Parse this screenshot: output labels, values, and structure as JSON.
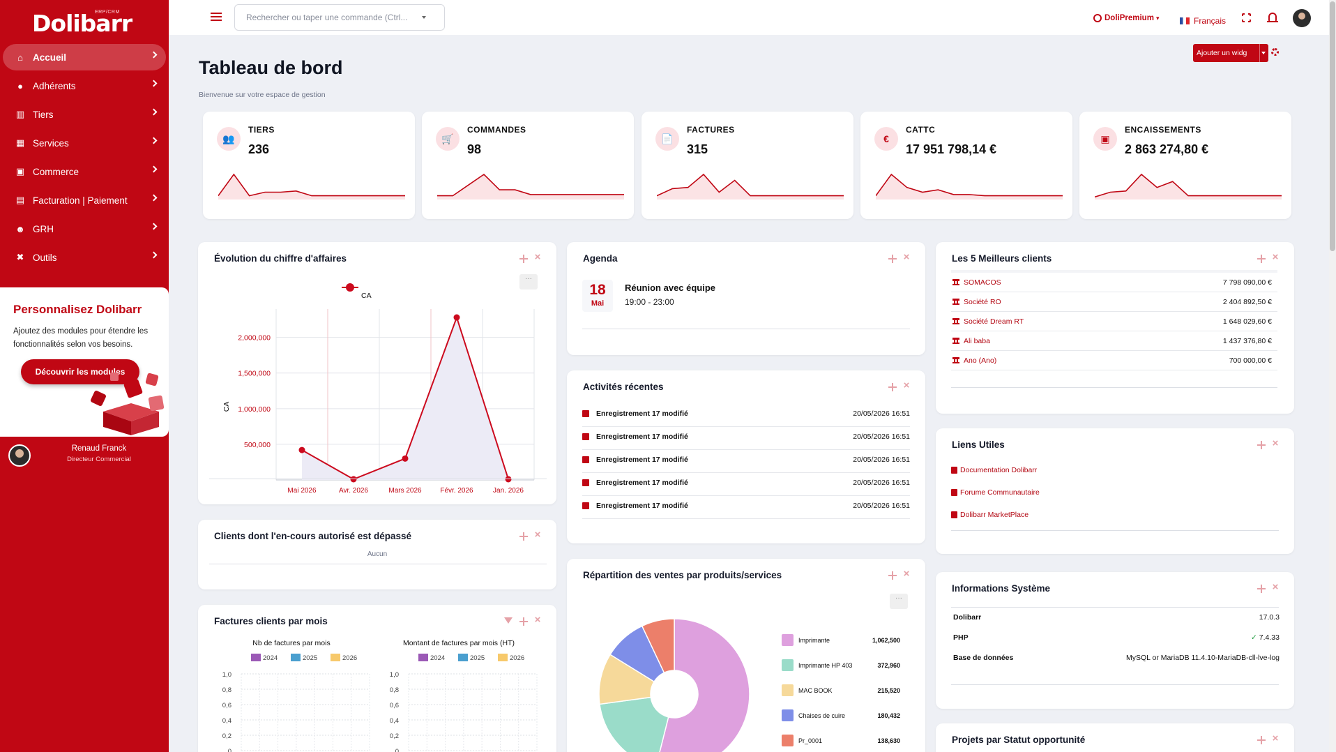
{
  "app": {
    "logo": "Dolibarr",
    "logo_sub": "ERP/CRM"
  },
  "colors": {
    "brand": "#c00714",
    "background": "#eef0f5",
    "card": "#ffffff"
  },
  "sidebar": {
    "items": [
      {
        "label": "Accueil",
        "icon": "home-icon",
        "active": true
      },
      {
        "label": "Adhérents",
        "icon": "user-icon",
        "active": false
      },
      {
        "label": "Tiers",
        "icon": "bank-icon",
        "active": false
      },
      {
        "label": "Services",
        "icon": "boxes-icon",
        "active": false
      },
      {
        "label": "Commerce",
        "icon": "briefcase-icon",
        "active": false
      },
      {
        "label": "Facturation | Paiement",
        "icon": "invoice-icon",
        "active": false
      },
      {
        "label": "GRH",
        "icon": "users-icon",
        "active": false
      },
      {
        "label": "Outils",
        "icon": "tools-icon",
        "active": false
      }
    ],
    "promo": {
      "title": "Personnalisez Dolibarr",
      "text": "Ajoutez des modules pour étendre les fonctionnalités selon vos besoins.",
      "button": "Découvrir les modules"
    },
    "user": {
      "name": "Renaud Franck",
      "role": "Directeur Commercial"
    }
  },
  "topbar": {
    "search_placeholder": "Rechercher ou taper une commande (Ctrl...",
    "premium": "DoliPremium",
    "language": "Français"
  },
  "header": {
    "title": "Tableau de bord",
    "subtitle": "Bienvenue sur votre espace de gestion",
    "add_widget": "Ajouter un widg"
  },
  "kpis": [
    {
      "label": "TIERS",
      "value": "236",
      "icon": "users-icon",
      "glyph": "👥",
      "spark": [
        0.1,
        1.0,
        0.1,
        0.25,
        0.25,
        0.3,
        0.1,
        0.1,
        0.1,
        0.1,
        0.1,
        0.1,
        0.1
      ]
    },
    {
      "label": "COMMANDES",
      "value": "98",
      "icon": "cart-icon",
      "glyph": "🛒",
      "spark": [
        0.1,
        0.1,
        0.55,
        1.0,
        0.35,
        0.35,
        0.15,
        0.15,
        0.15,
        0.15,
        0.15,
        0.15,
        0.15
      ]
    },
    {
      "label": "FACTURES",
      "value": "315",
      "icon": "invoice-icon",
      "glyph": "📄",
      "spark": [
        0.1,
        0.4,
        0.45,
        1.0,
        0.25,
        0.75,
        0.1,
        0.1,
        0.1,
        0.1,
        0.1,
        0.1,
        0.1
      ]
    },
    {
      "label": "CATTC",
      "value": "17 951 798,14 €",
      "icon": "euro-icon",
      "glyph": "€",
      "spark": [
        0.1,
        1.0,
        0.45,
        0.25,
        0.35,
        0.15,
        0.15,
        0.1,
        0.1,
        0.1,
        0.1,
        0.1,
        0.1
      ]
    },
    {
      "label": "ENCAISSEMENTS",
      "value": "2 863 274,80 €",
      "icon": "wallet-icon",
      "glyph": "▣",
      "spark": [
        0.05,
        0.25,
        0.3,
        1.0,
        0.45,
        0.7,
        0.1,
        0.1,
        0.1,
        0.1,
        0.1,
        0.1,
        0.1
      ]
    }
  ],
  "widgets": {
    "ca": {
      "title": "Évolution du chiffre d'affaires"
    },
    "agenda": {
      "title": "Agenda",
      "day": "18",
      "month": "Mai",
      "event": "Réunion avec équipe",
      "time": "19:00 - 23:00"
    },
    "activities": {
      "title": "Activités récentes",
      "rows": [
        {
          "text": "Enregistrement 17 modifié",
          "date": "20/05/2026 16:51"
        },
        {
          "text": "Enregistrement 17 modifié",
          "date": "20/05/2026 16:51"
        },
        {
          "text": "Enregistrement 17 modifié",
          "date": "20/05/2026 16:51"
        },
        {
          "text": "Enregistrement 17 modifié",
          "date": "20/05/2026 16:51"
        },
        {
          "text": "Enregistrement 17 modifié",
          "date": "20/05/2026 16:51"
        }
      ]
    },
    "best_clients": {
      "title": "Les 5 Meilleurs clients",
      "rows": [
        {
          "name": "SOMACOS",
          "amount": "7 798 090,00 €"
        },
        {
          "name": "Société RO",
          "amount": "2 404 892,50 €"
        },
        {
          "name": "Société Dream RT",
          "amount": "1 648 029,60 €"
        },
        {
          "name": "Ali baba",
          "amount": "1 437 376,80 €"
        },
        {
          "name": "Ano (Ano)",
          "amount": "700 000,00 €"
        }
      ]
    },
    "links": {
      "title": "Liens Utiles",
      "items": [
        "Documentation Dolibarr",
        "Forume Communautaire",
        "Dolibarr MarketPlace"
      ]
    },
    "overdue": {
      "title": "Clients dont l'en-cours autorisé est dépassé",
      "empty": "Aucun"
    },
    "sales_split": {
      "title": "Répartition des ventes par produits/services"
    },
    "invoices_month": {
      "title": "Factures clients par mois"
    },
    "system": {
      "title": "Informations Système",
      "rows": [
        {
          "key": "Dolibarr",
          "value": "17.0.3"
        },
        {
          "key": "PHP",
          "value": "7.4.33",
          "check": true
        },
        {
          "key": "Base de données",
          "value": "MySQL or MariaDB 11.4.10-MariaDB-cll-lve-log"
        }
      ]
    },
    "projects": {
      "title": "Projets par Statut opportunité"
    }
  },
  "chart_data": [
    {
      "type": "line",
      "categories": [
        "Mai 2026",
        "Avr. 2026",
        "Mars 2026",
        "Févr. 2026",
        "Jan. 2026"
      ],
      "series": [
        {
          "name": "CA",
          "values": [
            420000,
            10000,
            300000,
            2280000,
            10000
          ],
          "color": "#cc0a1e"
        }
      ],
      "ylabel": "CA",
      "yticks": [
        "500,000",
        "1,000,000",
        "1,500,000",
        "2,000,000"
      ],
      "ylim": [
        0,
        2300000
      ],
      "legend": "top-left",
      "grid": true
    },
    {
      "type": "pie",
      "labels": [
        "Imprimante",
        "Imprimante HP 403",
        "MAC BOOK",
        "Chaises de cuire",
        "Pr_0001"
      ],
      "values": [
        1062500,
        372960,
        215520,
        180432,
        138630
      ],
      "value_labels": [
        "1,062,500",
        "372,960",
        "215,520",
        "180,432",
        "138,630"
      ],
      "colors": [
        "#dea0de",
        "#9adcc9",
        "#f6d99a",
        "#7e8ee8",
        "#ec7f6a"
      ]
    },
    {
      "type": "bar",
      "title": "Nb de factures par mois",
      "series": [
        {
          "name": "2024",
          "color": "#9b59b6"
        },
        {
          "name": "2025",
          "color": "#4a9fcf"
        },
        {
          "name": "2026",
          "color": "#f7c96b"
        }
      ],
      "yticks": [
        "0",
        "0,2",
        "0,4",
        "0,6",
        "0,8",
        "1,0"
      ],
      "ylim": [
        0,
        1
      ]
    },
    {
      "type": "bar",
      "title": "Montant de factures par mois (HT)",
      "series": [
        {
          "name": "2024",
          "color": "#9b59b6"
        },
        {
          "name": "2025",
          "color": "#4a9fcf"
        },
        {
          "name": "2026",
          "color": "#f7c96b"
        }
      ],
      "yticks": [
        "0",
        "0,2",
        "0,4",
        "0,6",
        "0,8",
        "1,0"
      ],
      "ylim": [
        0,
        1
      ]
    }
  ]
}
